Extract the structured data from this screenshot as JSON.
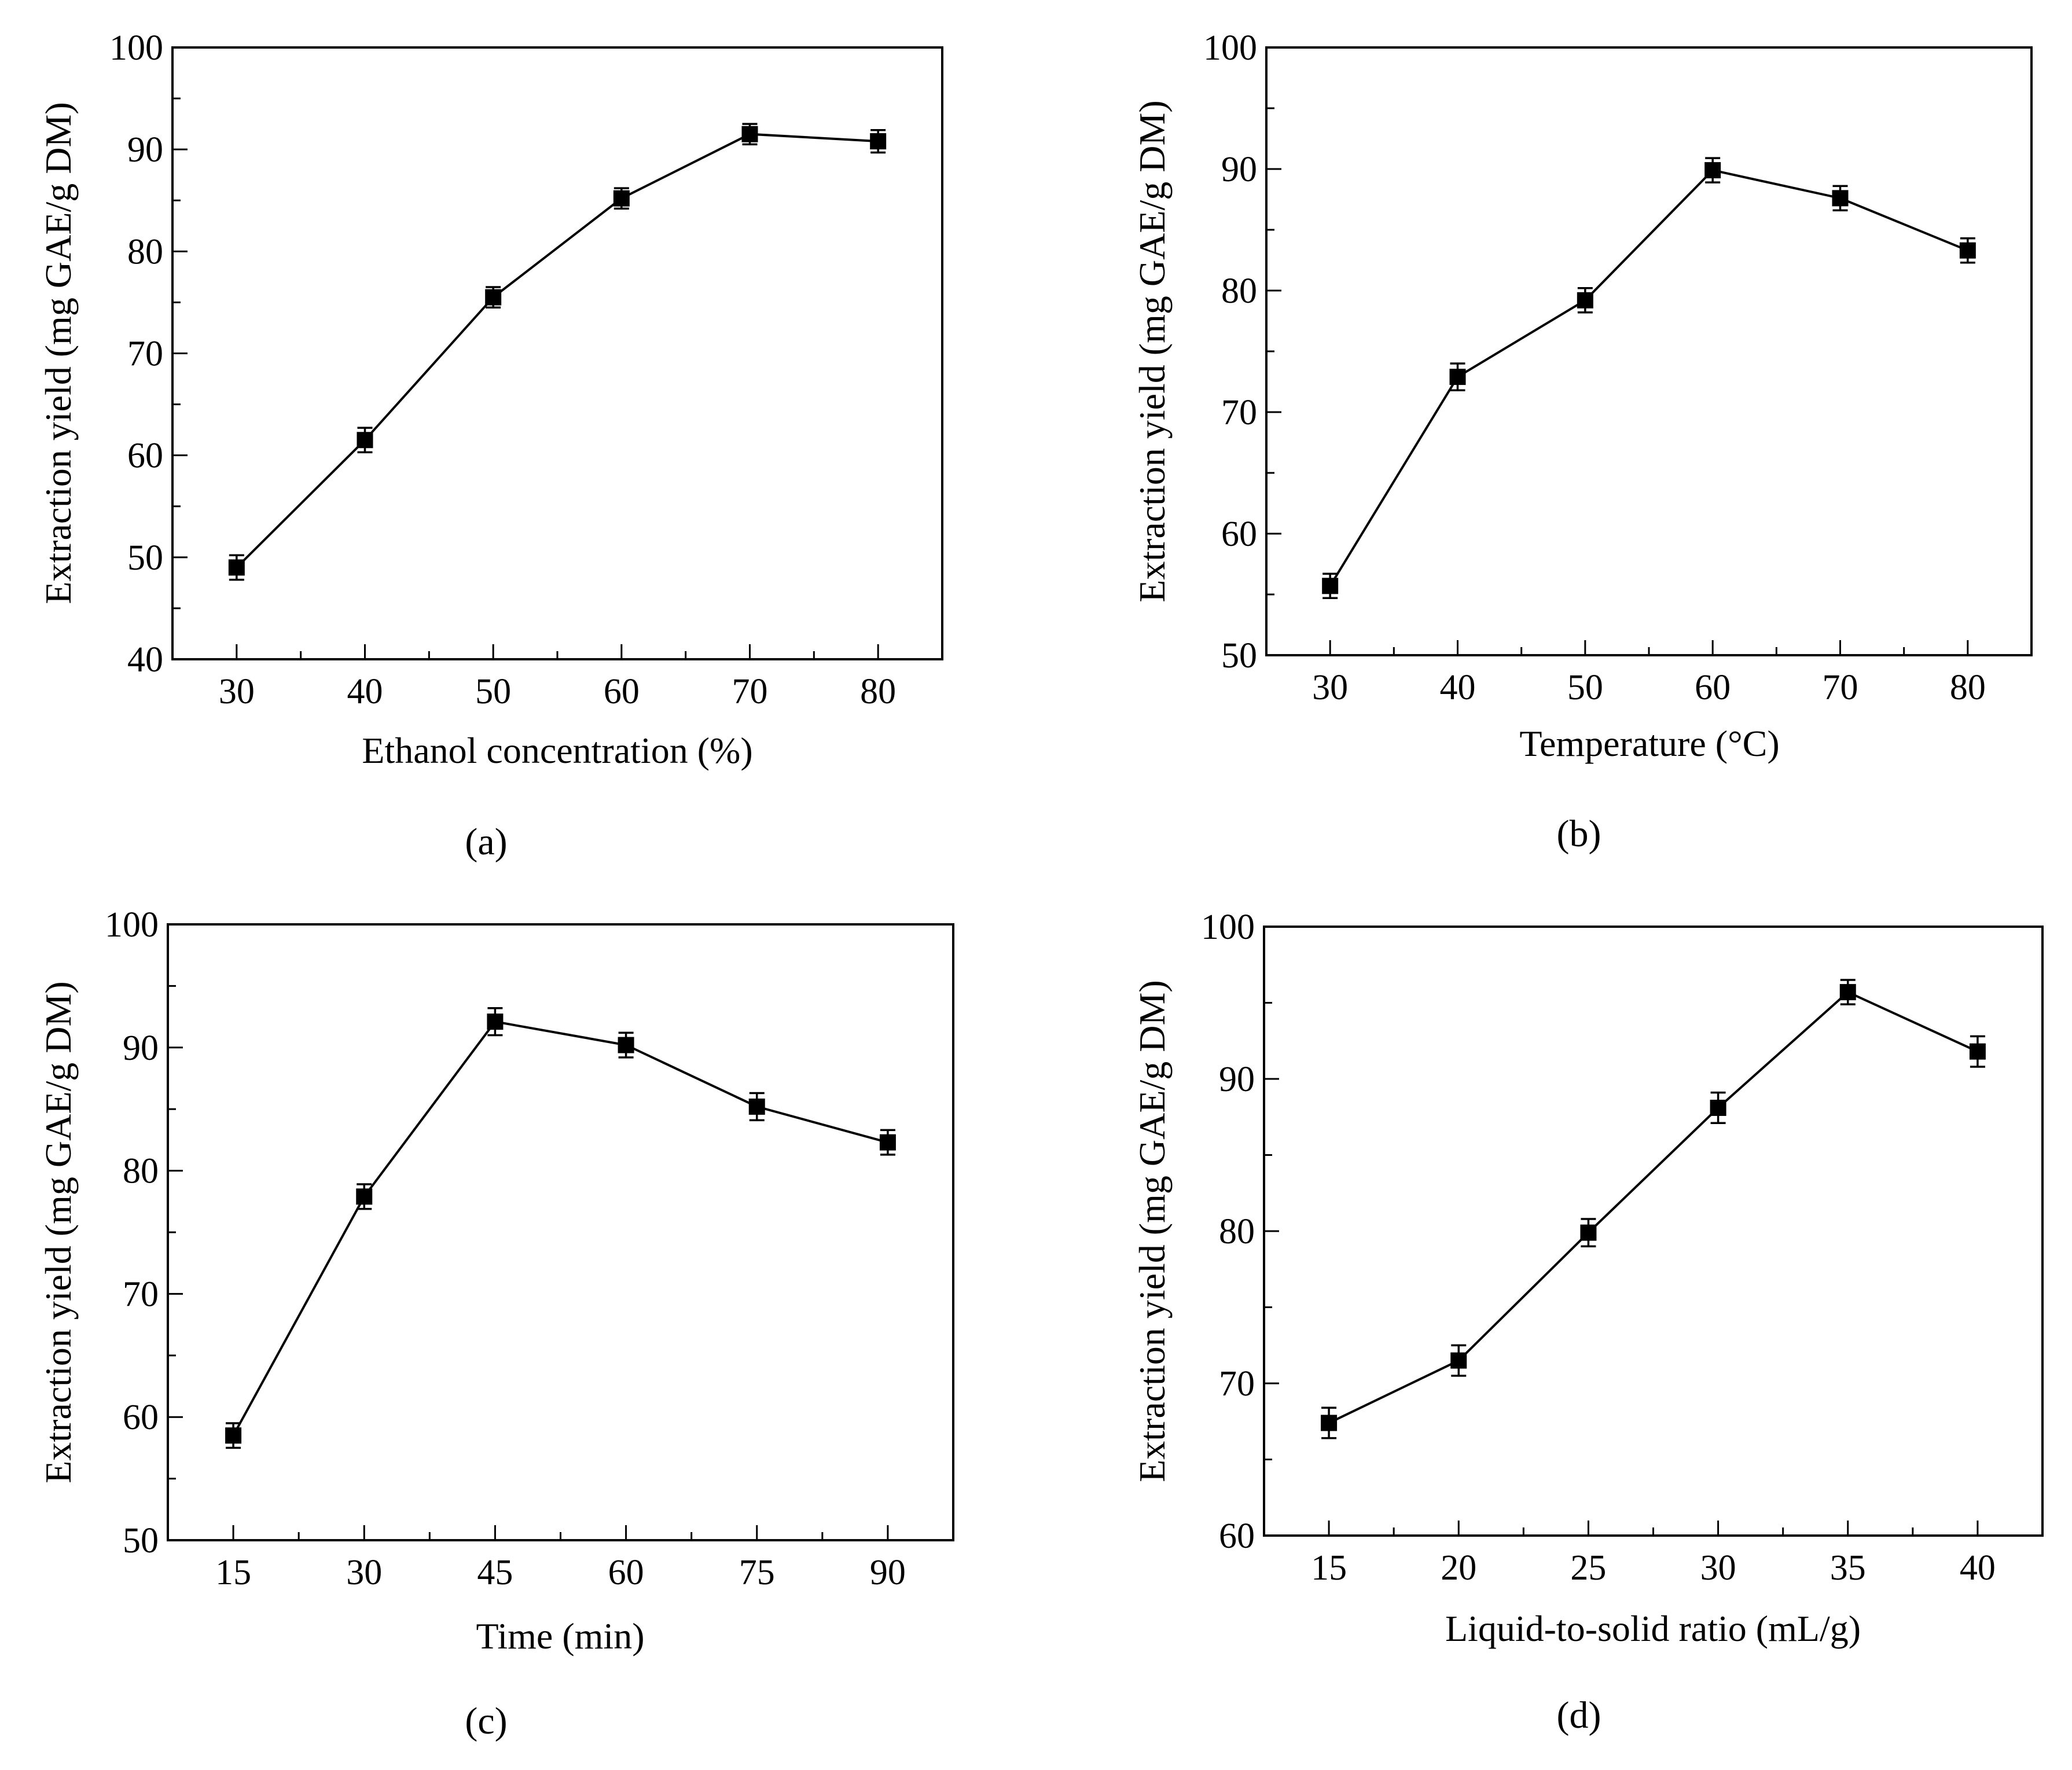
{
  "colors": {
    "line": "#000000",
    "marker": "#000000",
    "background": "#ffffff"
  },
  "chart_data": [
    {
      "type": "line",
      "panel_label": "(a)",
      "xlabel": "Ethanol concentration (%)",
      "ylabel": "Extraction yield (mg GAE/g DM)",
      "x": [
        30,
        40,
        50,
        60,
        70,
        80
      ],
      "y": [
        49.0,
        61.5,
        75.5,
        85.2,
        91.5,
        90.8
      ],
      "yerr": [
        1.2,
        1.2,
        1.0,
        1.0,
        1.0,
        1.1
      ],
      "xlim": [
        25,
        85
      ],
      "ylim": [
        40,
        100
      ],
      "xticks": [
        30,
        40,
        50,
        60,
        70,
        80
      ],
      "xtick_labels": [
        "30",
        "40",
        "50",
        "60",
        "70",
        "80"
      ],
      "yticks": [
        40,
        50,
        60,
        70,
        80,
        90,
        100
      ],
      "ytick_labels": [
        "40",
        "50",
        "60",
        "70",
        "80",
        "90",
        "100"
      ],
      "x_minor_step": 5,
      "y_minor_step": 5
    },
    {
      "type": "line",
      "panel_label": "(b)",
      "xlabel": "Temperature (°C)",
      "ylabel": "Extraction yield (mg GAE/g DM)",
      "x": [
        30,
        40,
        50,
        60,
        70,
        80
      ],
      "y": [
        55.7,
        72.9,
        79.2,
        89.9,
        87.6,
        83.3
      ],
      "yerr": [
        1.0,
        1.1,
        1.0,
        1.0,
        1.0,
        1.0
      ],
      "xlim": [
        25,
        85
      ],
      "ylim": [
        50,
        100
      ],
      "xticks": [
        30,
        40,
        50,
        60,
        70,
        80
      ],
      "xtick_labels": [
        "30",
        "40",
        "50",
        "60",
        "70",
        "80"
      ],
      "yticks": [
        50,
        60,
        70,
        80,
        90,
        100
      ],
      "ytick_labels": [
        "50",
        "60",
        "70",
        "80",
        "90",
        "100"
      ],
      "x_minor_step": 5,
      "y_minor_step": 5
    },
    {
      "type": "line",
      "panel_label": "(c)",
      "xlabel": "Time (min)",
      "ylabel": "Extraction yield (mg GAE/g DM)",
      "x": [
        15,
        30,
        45,
        60,
        75,
        90
      ],
      "y": [
        58.5,
        77.9,
        92.1,
        90.2,
        85.2,
        82.3
      ],
      "yerr": [
        1.0,
        1.0,
        1.1,
        1.0,
        1.1,
        1.0
      ],
      "xlim": [
        7.5,
        97.5
      ],
      "ylim": [
        50,
        100
      ],
      "xticks": [
        15,
        30,
        45,
        60,
        75,
        90
      ],
      "xtick_labels": [
        "15",
        "30",
        "45",
        "60",
        "75",
        "90"
      ],
      "yticks": [
        50,
        60,
        70,
        80,
        90,
        100
      ],
      "ytick_labels": [
        "50",
        "60",
        "70",
        "80",
        "90",
        "100"
      ],
      "x_minor_step": 7.5,
      "y_minor_step": 5
    },
    {
      "type": "line",
      "panel_label": "(d)",
      "xlabel": "Liquid-to-solid ratio (mL/g)",
      "ylabel": "Extraction yield (mg GAE/g DM)",
      "x": [
        15,
        20,
        25,
        30,
        35,
        40
      ],
      "y": [
        67.4,
        71.5,
        79.9,
        88.1,
        95.7,
        91.8
      ],
      "yerr": [
        1.0,
        1.0,
        0.9,
        1.0,
        0.8,
        1.0
      ],
      "xlim": [
        12.5,
        42.5
      ],
      "ylim": [
        60,
        100
      ],
      "xticks": [
        15,
        20,
        25,
        30,
        35,
        40
      ],
      "xtick_labels": [
        "15",
        "20",
        "25",
        "30",
        "35",
        "40"
      ],
      "yticks": [
        60,
        70,
        80,
        90,
        100
      ],
      "ytick_labels": [
        "60",
        "70",
        "80",
        "90",
        "100"
      ],
      "x_minor_step": 2.5,
      "y_minor_step": 5
    }
  ]
}
